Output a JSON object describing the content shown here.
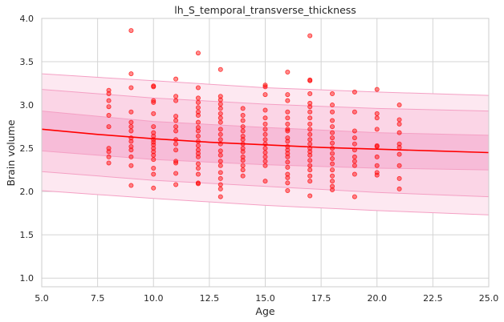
{
  "chart_data": {
    "type": "scatter",
    "title": "lh_S_temporal_transverse_thickness",
    "xlabel": "Age",
    "ylabel": "Brain volume",
    "xlim": [
      5.0,
      25.0
    ],
    "ylim": [
      0.9,
      4.0
    ],
    "xticks": [
      5.0,
      7.5,
      10.0,
      12.5,
      15.0,
      17.5,
      20.0,
      22.5,
      25.0
    ],
    "xtick_labels": [
      "5.0",
      "7.5",
      "10.0",
      "12.5",
      "15.0",
      "17.5",
      "20.0",
      "22.5",
      "25.0"
    ],
    "yticks": [
      1.0,
      1.5,
      2.0,
      2.5,
      3.0,
      3.5,
      4.0
    ],
    "ytick_labels": [
      "1.0",
      "1.5",
      "2.0",
      "2.5",
      "3.0",
      "3.5",
      "4.0"
    ],
    "grid": true,
    "colors": {
      "points": "#ff0000",
      "fit_line": "#ff0000",
      "band_outer": "#fde8f1",
      "band_middle": "#fbd5e6",
      "band_inner": "#f7bcd8",
      "band_edge": "#f4a0c4",
      "grid": "#d4d4d4"
    },
    "fit_line": {
      "x": [
        5,
        7.5,
        10,
        12.5,
        15,
        17.5,
        20,
        22.5,
        25
      ],
      "y": [
        2.72,
        2.66,
        2.61,
        2.57,
        2.54,
        2.51,
        2.49,
        2.47,
        2.45
      ]
    },
    "bands": [
      {
        "name": "outer",
        "x": [
          5,
          10,
          15,
          20,
          25
        ],
        "lower": [
          2.01,
          1.92,
          1.84,
          1.78,
          1.73
        ],
        "upper": [
          3.36,
          3.28,
          3.2,
          3.15,
          3.11
        ]
      },
      {
        "name": "middle",
        "x": [
          5,
          10,
          15,
          20,
          25
        ],
        "lower": [
          2.23,
          2.13,
          2.06,
          1.99,
          1.94
        ],
        "upper": [
          3.18,
          3.08,
          3.01,
          2.96,
          2.93
        ]
      },
      {
        "name": "inner",
        "x": [
          5,
          10,
          15,
          20,
          25
        ],
        "lower": [
          2.47,
          2.37,
          2.31,
          2.27,
          2.25
        ],
        "upper": [
          2.93,
          2.81,
          2.74,
          2.68,
          2.65
        ]
      }
    ],
    "points": [
      {
        "x": 8,
        "y": 3.17
      },
      {
        "x": 8,
        "y": 3.13
      },
      {
        "x": 8,
        "y": 3.05
      },
      {
        "x": 8,
        "y": 2.98
      },
      {
        "x": 8,
        "y": 2.88
      },
      {
        "x": 8,
        "y": 2.75
      },
      {
        "x": 8,
        "y": 2.5
      },
      {
        "x": 8,
        "y": 2.46
      },
      {
        "x": 8,
        "y": 2.4
      },
      {
        "x": 8,
        "y": 2.33
      },
      {
        "x": 9,
        "y": 3.86
      },
      {
        "x": 9,
        "y": 3.36
      },
      {
        "x": 9,
        "y": 3.2
      },
      {
        "x": 9,
        "y": 2.92
      },
      {
        "x": 9,
        "y": 2.8
      },
      {
        "x": 9,
        "y": 2.75
      },
      {
        "x": 9,
        "y": 2.7
      },
      {
        "x": 9,
        "y": 2.62
      },
      {
        "x": 9,
        "y": 2.58
      },
      {
        "x": 9,
        "y": 2.52
      },
      {
        "x": 9,
        "y": 2.48
      },
      {
        "x": 9,
        "y": 2.4
      },
      {
        "x": 9,
        "y": 2.3
      },
      {
        "x": 9,
        "y": 2.07
      },
      {
        "x": 10,
        "y": 3.22
      },
      {
        "x": 10,
        "y": 3.21
      },
      {
        "x": 10,
        "y": 3.05
      },
      {
        "x": 10,
        "y": 3.03
      },
      {
        "x": 10,
        "y": 2.9
      },
      {
        "x": 10,
        "y": 2.75
      },
      {
        "x": 10,
        "y": 2.68
      },
      {
        "x": 10,
        "y": 2.64
      },
      {
        "x": 10,
        "y": 2.6
      },
      {
        "x": 10,
        "y": 2.57
      },
      {
        "x": 10,
        "y": 2.54
      },
      {
        "x": 10,
        "y": 2.5
      },
      {
        "x": 10,
        "y": 2.46
      },
      {
        "x": 10,
        "y": 2.42
      },
      {
        "x": 10,
        "y": 2.37
      },
      {
        "x": 10,
        "y": 2.27
      },
      {
        "x": 10,
        "y": 2.2
      },
      {
        "x": 10,
        "y": 2.04
      },
      {
        "x": 11,
        "y": 3.3
      },
      {
        "x": 11,
        "y": 3.1
      },
      {
        "x": 11,
        "y": 3.05
      },
      {
        "x": 11,
        "y": 2.87
      },
      {
        "x": 11,
        "y": 2.82
      },
      {
        "x": 11,
        "y": 2.75
      },
      {
        "x": 11,
        "y": 2.7
      },
      {
        "x": 11,
        "y": 2.6
      },
      {
        "x": 11,
        "y": 2.55
      },
      {
        "x": 11,
        "y": 2.48
      },
      {
        "x": 11,
        "y": 2.35
      },
      {
        "x": 11,
        "y": 2.33
      },
      {
        "x": 11,
        "y": 2.21
      },
      {
        "x": 11,
        "y": 2.08
      },
      {
        "x": 12,
        "y": 3.6
      },
      {
        "x": 12,
        "y": 3.2
      },
      {
        "x": 12,
        "y": 3.08
      },
      {
        "x": 12,
        "y": 3.03
      },
      {
        "x": 12,
        "y": 2.97
      },
      {
        "x": 12,
        "y": 2.92
      },
      {
        "x": 12,
        "y": 2.88
      },
      {
        "x": 12,
        "y": 2.8
      },
      {
        "x": 12,
        "y": 2.74
      },
      {
        "x": 12,
        "y": 2.7
      },
      {
        "x": 12,
        "y": 2.64
      },
      {
        "x": 12,
        "y": 2.58
      },
      {
        "x": 12,
        "y": 2.53
      },
      {
        "x": 12,
        "y": 2.48
      },
      {
        "x": 12,
        "y": 2.44
      },
      {
        "x": 12,
        "y": 2.4
      },
      {
        "x": 12,
        "y": 2.32
      },
      {
        "x": 12,
        "y": 2.27
      },
      {
        "x": 12,
        "y": 2.2
      },
      {
        "x": 12,
        "y": 2.1
      },
      {
        "x": 12,
        "y": 2.09
      },
      {
        "x": 13,
        "y": 3.41
      },
      {
        "x": 13,
        "y": 3.1
      },
      {
        "x": 13,
        "y": 3.06
      },
      {
        "x": 13,
        "y": 3.01
      },
      {
        "x": 13,
        "y": 2.96
      },
      {
        "x": 13,
        "y": 2.9
      },
      {
        "x": 13,
        "y": 2.85
      },
      {
        "x": 13,
        "y": 2.8
      },
      {
        "x": 13,
        "y": 2.72
      },
      {
        "x": 13,
        "y": 2.66
      },
      {
        "x": 13,
        "y": 2.6
      },
      {
        "x": 13,
        "y": 2.55
      },
      {
        "x": 13,
        "y": 2.47
      },
      {
        "x": 13,
        "y": 2.42
      },
      {
        "x": 13,
        "y": 2.35
      },
      {
        "x": 13,
        "y": 2.3
      },
      {
        "x": 13,
        "y": 2.22
      },
      {
        "x": 13,
        "y": 2.15
      },
      {
        "x": 13,
        "y": 2.08
      },
      {
        "x": 13,
        "y": 2.03
      },
      {
        "x": 13,
        "y": 1.94
      },
      {
        "x": 14,
        "y": 2.96
      },
      {
        "x": 14,
        "y": 2.88
      },
      {
        "x": 14,
        "y": 2.82
      },
      {
        "x": 14,
        "y": 2.75
      },
      {
        "x": 14,
        "y": 2.7
      },
      {
        "x": 14,
        "y": 2.64
      },
      {
        "x": 14,
        "y": 2.6
      },
      {
        "x": 14,
        "y": 2.55
      },
      {
        "x": 14,
        "y": 2.5
      },
      {
        "x": 14,
        "y": 2.46
      },
      {
        "x": 14,
        "y": 2.4
      },
      {
        "x": 14,
        "y": 2.36
      },
      {
        "x": 14,
        "y": 2.3
      },
      {
        "x": 14,
        "y": 2.25
      },
      {
        "x": 14,
        "y": 2.18
      },
      {
        "x": 15,
        "y": 3.23
      },
      {
        "x": 15,
        "y": 3.21
      },
      {
        "x": 15,
        "y": 3.12
      },
      {
        "x": 15,
        "y": 2.94
      },
      {
        "x": 15,
        "y": 2.85
      },
      {
        "x": 15,
        "y": 2.78
      },
      {
        "x": 15,
        "y": 2.72
      },
      {
        "x": 15,
        "y": 2.66
      },
      {
        "x": 15,
        "y": 2.6
      },
      {
        "x": 15,
        "y": 2.55
      },
      {
        "x": 15,
        "y": 2.5
      },
      {
        "x": 15,
        "y": 2.45
      },
      {
        "x": 15,
        "y": 2.4
      },
      {
        "x": 15,
        "y": 2.35
      },
      {
        "x": 15,
        "y": 2.3
      },
      {
        "x": 15,
        "y": 2.12
      },
      {
        "x": 16,
        "y": 3.38
      },
      {
        "x": 16,
        "y": 3.12
      },
      {
        "x": 16,
        "y": 3.05
      },
      {
        "x": 16,
        "y": 2.92
      },
      {
        "x": 16,
        "y": 2.85
      },
      {
        "x": 16,
        "y": 2.78
      },
      {
        "x": 16,
        "y": 2.72
      },
      {
        "x": 16,
        "y": 2.7
      },
      {
        "x": 16,
        "y": 2.62
      },
      {
        "x": 16,
        "y": 2.58
      },
      {
        "x": 16,
        "y": 2.52
      },
      {
        "x": 16,
        "y": 2.48
      },
      {
        "x": 16,
        "y": 2.44
      },
      {
        "x": 16,
        "y": 2.4
      },
      {
        "x": 16,
        "y": 2.34
      },
      {
        "x": 16,
        "y": 2.28
      },
      {
        "x": 16,
        "y": 2.2
      },
      {
        "x": 16,
        "y": 2.16
      },
      {
        "x": 16,
        "y": 2.1
      },
      {
        "x": 16,
        "y": 2.01
      },
      {
        "x": 17,
        "y": 3.8
      },
      {
        "x": 17,
        "y": 3.29
      },
      {
        "x": 17,
        "y": 3.28
      },
      {
        "x": 17,
        "y": 3.13
      },
      {
        "x": 17,
        "y": 3.02
      },
      {
        "x": 17,
        "y": 2.98
      },
      {
        "x": 17,
        "y": 2.92
      },
      {
        "x": 17,
        "y": 2.85
      },
      {
        "x": 17,
        "y": 2.78
      },
      {
        "x": 17,
        "y": 2.72
      },
      {
        "x": 17,
        "y": 2.66
      },
      {
        "x": 17,
        "y": 2.6
      },
      {
        "x": 17,
        "y": 2.55
      },
      {
        "x": 17,
        "y": 2.5
      },
      {
        "x": 17,
        "y": 2.46
      },
      {
        "x": 17,
        "y": 2.42
      },
      {
        "x": 17,
        "y": 2.36
      },
      {
        "x": 17,
        "y": 2.3
      },
      {
        "x": 17,
        "y": 2.25
      },
      {
        "x": 17,
        "y": 2.18
      },
      {
        "x": 17,
        "y": 2.12
      },
      {
        "x": 17,
        "y": 1.95
      },
      {
        "x": 18,
        "y": 3.13
      },
      {
        "x": 18,
        "y": 3.0
      },
      {
        "x": 18,
        "y": 2.92
      },
      {
        "x": 18,
        "y": 2.82
      },
      {
        "x": 18,
        "y": 2.75
      },
      {
        "x": 18,
        "y": 2.68
      },
      {
        "x": 18,
        "y": 2.62
      },
      {
        "x": 18,
        "y": 2.56
      },
      {
        "x": 18,
        "y": 2.5
      },
      {
        "x": 18,
        "y": 2.44
      },
      {
        "x": 18,
        "y": 2.38
      },
      {
        "x": 18,
        "y": 2.32
      },
      {
        "x": 18,
        "y": 2.25
      },
      {
        "x": 18,
        "y": 2.18
      },
      {
        "x": 18,
        "y": 2.12
      },
      {
        "x": 18,
        "y": 2.06
      },
      {
        "x": 18,
        "y": 2.02
      },
      {
        "x": 19,
        "y": 3.15
      },
      {
        "x": 19,
        "y": 2.92
      },
      {
        "x": 19,
        "y": 2.7
      },
      {
        "x": 19,
        "y": 2.62
      },
      {
        "x": 19,
        "y": 2.55
      },
      {
        "x": 19,
        "y": 2.48
      },
      {
        "x": 19,
        "y": 2.4
      },
      {
        "x": 19,
        "y": 2.35
      },
      {
        "x": 19,
        "y": 2.3
      },
      {
        "x": 19,
        "y": 2.2
      },
      {
        "x": 19,
        "y": 1.94
      },
      {
        "x": 20,
        "y": 3.18
      },
      {
        "x": 20,
        "y": 2.9
      },
      {
        "x": 20,
        "y": 2.85
      },
      {
        "x": 20,
        "y": 2.72
      },
      {
        "x": 20,
        "y": 2.53
      },
      {
        "x": 20,
        "y": 2.52
      },
      {
        "x": 20,
        "y": 2.4
      },
      {
        "x": 20,
        "y": 2.3
      },
      {
        "x": 20,
        "y": 2.22
      },
      {
        "x": 20,
        "y": 2.19
      },
      {
        "x": 21,
        "y": 3.0
      },
      {
        "x": 21,
        "y": 2.83
      },
      {
        "x": 21,
        "y": 2.78
      },
      {
        "x": 21,
        "y": 2.68
      },
      {
        "x": 21,
        "y": 2.55
      },
      {
        "x": 21,
        "y": 2.51
      },
      {
        "x": 21,
        "y": 2.43
      },
      {
        "x": 21,
        "y": 2.3
      },
      {
        "x": 21,
        "y": 2.15
      },
      {
        "x": 21,
        "y": 2.03
      }
    ]
  }
}
